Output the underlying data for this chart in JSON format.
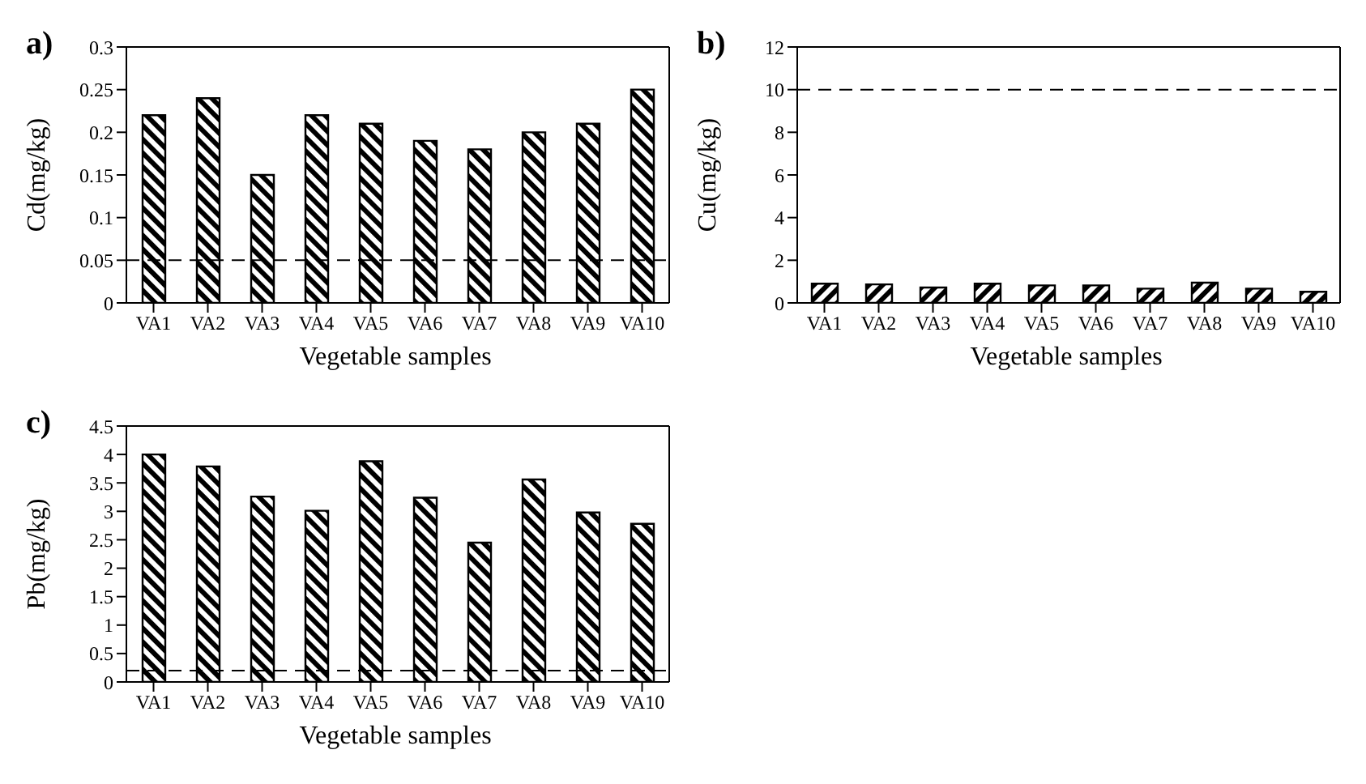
{
  "chart_data": [
    {
      "type": "bar",
      "title": "a)",
      "xlabel": "Vegetable samples",
      "ylabel": "Cd(mg/kg)",
      "categories": [
        "VA1",
        "VA2",
        "VA3",
        "VA4",
        "VA5",
        "VA6",
        "VA7",
        "VA8",
        "VA9",
        "VA10"
      ],
      "values": [
        0.22,
        0.24,
        0.15,
        0.22,
        0.21,
        0.19,
        0.18,
        0.2,
        0.21,
        0.25
      ],
      "color": "#000000",
      "ylim": [
        0,
        0.3
      ],
      "yticks": [
        0,
        0.05,
        0.1,
        0.15,
        0.2,
        0.25,
        0.3
      ],
      "ref_lines": [
        {
          "axis": "y",
          "value": 0.05,
          "line_style": "dashed"
        }
      ],
      "grid": false,
      "legend": false
    },
    {
      "type": "bar",
      "title": "b)",
      "xlabel": "Vegetable samples",
      "ylabel": "Cu(mg/kg)",
      "categories": [
        "VA1",
        "VA2",
        "VA3",
        "VA4",
        "VA5",
        "VA6",
        "VA7",
        "VA8",
        "VA9",
        "VA10"
      ],
      "values": [
        0.9,
        0.87,
        0.72,
        0.9,
        0.82,
        0.82,
        0.67,
        0.95,
        0.67,
        0.52
      ],
      "color": "#000000",
      "ylim": [
        0,
        12
      ],
      "yticks": [
        0,
        2,
        4,
        6,
        8,
        10,
        12
      ],
      "ref_lines": [
        {
          "axis": "y",
          "value": 10,
          "line_style": "dashed"
        }
      ],
      "grid": false,
      "legend": false
    },
    {
      "type": "bar",
      "title": "c)",
      "xlabel": "Vegetable samples",
      "ylabel": "Pb(mg/kg)",
      "categories": [
        "VA1",
        "VA2",
        "VA3",
        "VA4",
        "VA5",
        "VA6",
        "VA7",
        "VA8",
        "VA9",
        "VA10"
      ],
      "values": [
        4.0,
        3.79,
        3.26,
        3.01,
        3.88,
        3.24,
        2.45,
        3.56,
        2.98,
        2.78
      ],
      "color": "#000000",
      "ylim": [
        0,
        4.5
      ],
      "yticks": [
        0,
        0.5,
        1,
        1.5,
        2,
        2.5,
        3,
        3.5,
        4,
        4.5
      ],
      "ref_lines": [
        {
          "axis": "y",
          "value": 0.2,
          "line_style": "dashed"
        }
      ],
      "grid": false,
      "legend": false
    }
  ]
}
